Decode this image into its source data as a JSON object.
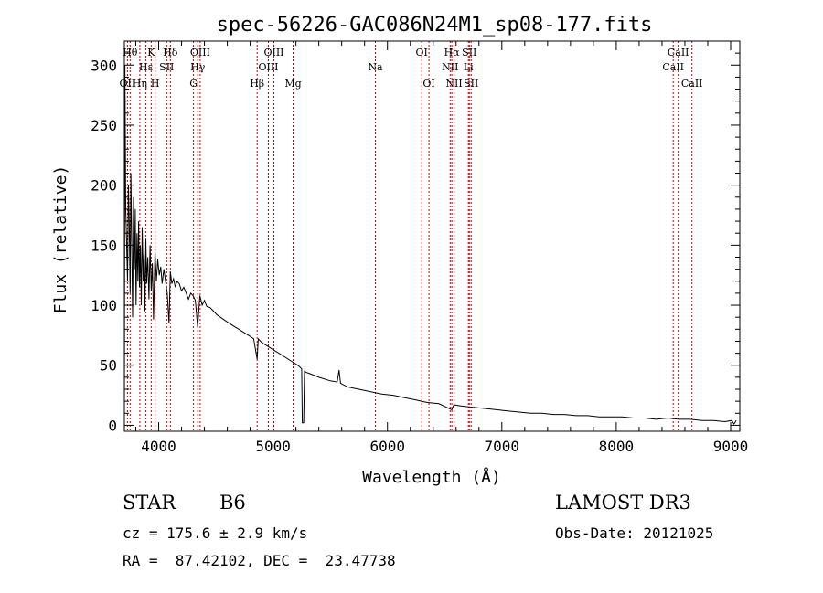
{
  "chart_data": {
    "type": "line",
    "title": "spec-56226-GAC086N24M1_sp08-177.fits",
    "xlabel": "Wavelength (Å)",
    "ylabel": "Flux (relative)",
    "xlim": [
      3700,
      9080
    ],
    "ylim": [
      -5,
      320
    ],
    "xticks": [
      4000,
      5000,
      6000,
      7000,
      8000,
      9000
    ],
    "xtick_labels": [
      "4000",
      "5000",
      "6000",
      "7000",
      "8000",
      "9000"
    ],
    "yticks": [
      0,
      50,
      100,
      150,
      200,
      250,
      300
    ],
    "ytick_labels": [
      "0",
      "50",
      "100",
      "150",
      "200",
      "250",
      "300"
    ],
    "grid": false,
    "series": [
      {
        "name": "spectrum",
        "x": [
          3700,
          3705,
          3712,
          3720,
          3728,
          3735,
          3742,
          3750,
          3757,
          3765,
          3772,
          3780,
          3788,
          3795,
          3802,
          3810,
          3818,
          3825,
          3832,
          3840,
          3848,
          3856,
          3865,
          3872,
          3880,
          3888,
          3895,
          3905,
          3915,
          3925,
          3935,
          3945,
          3955,
          3968,
          3980,
          3992,
          4005,
          4018,
          4030,
          4045,
          4060,
          4075,
          4090,
          4102,
          4115,
          4130,
          4145,
          4160,
          4180,
          4200,
          4220,
          4240,
          4260,
          4280,
          4300,
          4320,
          4340,
          4360,
          4380,
          4400,
          4420,
          4450,
          4480,
          4510,
          4540,
          4570,
          4600,
          4650,
          4700,
          4750,
          4800,
          4830,
          4861,
          4870,
          4900,
          4950,
          5000,
          5050,
          5100,
          5150,
          5200,
          5230,
          5250,
          5256,
          5262,
          5268,
          5275,
          5290,
          5320,
          5400,
          5500,
          5560,
          5577,
          5590,
          5650,
          5750,
          5850,
          5950,
          6050,
          6150,
          6250,
          6300,
          6350,
          6450,
          6563,
          6580,
          6650,
          6750,
          6850,
          6950,
          7050,
          7150,
          7250,
          7350,
          7450,
          7550,
          7650,
          7750,
          7850,
          7950,
          8050,
          8150,
          8250,
          8350,
          8450,
          8550,
          8650,
          8750,
          8850,
          8950,
          9010,
          9030,
          9050
        ],
        "y": [
          5,
          300,
          180,
          150,
          120,
          200,
          170,
          110,
          210,
          150,
          90,
          190,
          130,
          180,
          100,
          160,
          120,
          170,
          115,
          150,
          100,
          165,
          120,
          145,
          95,
          155,
          118,
          140,
          105,
          150,
          112,
          135,
          88,
          145,
          120,
          138,
          125,
          132,
          118,
          130,
          120,
          110,
          85,
          128,
          118,
          122,
          115,
          120,
          118,
          112,
          115,
          110,
          105,
          110,
          108,
          104,
          82,
          108,
          100,
          104,
          99,
          98,
          95,
          92,
          90,
          88,
          86,
          83,
          80,
          77,
          74,
          72,
          55,
          72,
          69,
          66,
          63,
          60,
          57,
          54,
          51,
          49,
          47,
          2,
          2,
          2,
          45,
          44,
          43,
          40,
          37,
          36,
          46,
          35,
          32,
          30,
          28,
          26,
          25,
          23,
          21,
          20,
          19,
          18,
          13,
          17,
          16,
          15,
          14,
          13,
          12,
          11,
          10,
          10,
          9,
          9,
          8,
          8,
          7,
          7,
          7,
          6,
          6,
          5,
          6,
          5,
          5,
          4,
          4,
          3,
          4,
          1,
          4
        ]
      }
    ],
    "lines": [
      {
        "name": "OII",
        "wave": 3727,
        "label": "OII",
        "row": 3
      },
      {
        "name": "H-theta",
        "wave": 3750,
        "label": "Hθ",
        "row": 1
      },
      {
        "name": "H-eta",
        "wave": 3835,
        "label": "Hη",
        "row": 3
      },
      {
        "name": "H-epsilon",
        "wave": 3889,
        "label": "Hε",
        "row": 2
      },
      {
        "name": "K",
        "wave": 3934,
        "label": "K",
        "row": 1
      },
      {
        "name": "SII-blue",
        "wave": 4070,
        "label": "SII",
        "row": 2
      },
      {
        "name": "H",
        "wave": 3969,
        "label": "H",
        "row": 3
      },
      {
        "name": "H-delta",
        "wave": 4102,
        "label": "Hδ",
        "row": 1
      },
      {
        "name": "G",
        "wave": 4304,
        "label": "G",
        "row": 3
      },
      {
        "name": "H-gamma",
        "wave": 4341,
        "label": "Hγ",
        "row": 2
      },
      {
        "name": "OIII-4363",
        "wave": 4363,
        "label": "OIII",
        "row": 1
      },
      {
        "name": "H-beta",
        "wave": 4861,
        "label": "Hβ",
        "row": 3
      },
      {
        "name": "OIII-4959",
        "wave": 4959,
        "label": "OIII",
        "row": 2
      },
      {
        "name": "OIII-5007",
        "wave": 5007,
        "label": "OIII",
        "row": 1
      },
      {
        "name": "Mg",
        "wave": 5175,
        "label": "Mg",
        "row": 3
      },
      {
        "name": "Na",
        "wave": 5894,
        "label": "Na",
        "row": 2
      },
      {
        "name": "OI-6300",
        "wave": 6300,
        "label": "OI",
        "row": 1
      },
      {
        "name": "OI-6363",
        "wave": 6363,
        "label": "OI",
        "row": 3
      },
      {
        "name": "NII-6548",
        "wave": 6548,
        "label": "NII",
        "row": 2
      },
      {
        "name": "H-alpha",
        "wave": 6563,
        "label": "Hα",
        "row": 1
      },
      {
        "name": "NII-6583",
        "wave": 6583,
        "label": "NII",
        "row": 3
      },
      {
        "name": "Li",
        "wave": 6707,
        "label": "Li",
        "row": 2
      },
      {
        "name": "SII-6716",
        "wave": 6716,
        "label": "SII",
        "row": 1
      },
      {
        "name": "SII-6731",
        "wave": 6731,
        "label": "SII",
        "row": 3
      },
      {
        "name": "CaII-8498",
        "wave": 8498,
        "label": "CaII",
        "row": 2
      },
      {
        "name": "CaII-8542",
        "wave": 8542,
        "label": "CaII",
        "row": 1
      },
      {
        "name": "CaII-8662",
        "wave": 8662,
        "label": "CaII",
        "row": 3
      }
    ]
  },
  "info": {
    "object_class": "STAR",
    "subclass": "B6",
    "survey": "LAMOST DR3",
    "cz": "cz = 175.6 ± 2.9 km/s",
    "obs_date": "Obs-Date: 20121025",
    "coords": "RA =  87.42102, DEC =  23.47738"
  },
  "colors": {
    "spectrum": "#000000",
    "line_markers": "#c00000",
    "axes": "#000000"
  }
}
